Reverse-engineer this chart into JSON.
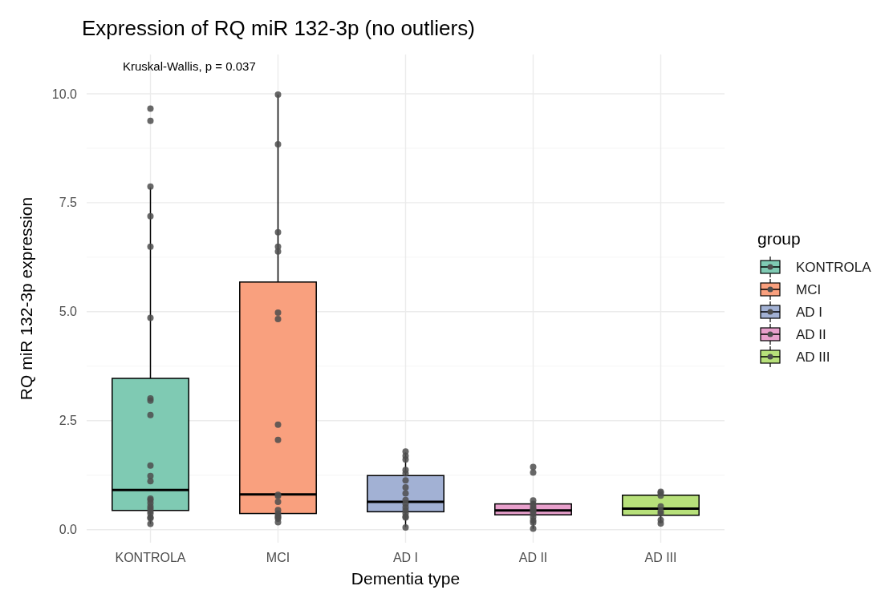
{
  "chart_data": {
    "type": "box",
    "title": "Expression of RQ miR 132-3p (no outliers)",
    "xlabel": "Dementia type",
    "ylabel": "RQ miR 132-3p expression",
    "legend_title": "group",
    "legend": "right",
    "grid": true,
    "annotations": [
      "Kruskal-Wallis, p = 0.037"
    ],
    "categories": [
      "KONTROLA",
      "MCI",
      "AD I",
      "AD II",
      "AD III"
    ],
    "ylim": [
      -0.3,
      10.9
    ],
    "yticks": [
      {
        "value": 0,
        "label": "0.0"
      },
      {
        "value": 2.5,
        "label": "2.5"
      },
      {
        "value": 5,
        "label": "5.0"
      },
      {
        "value": 7.5,
        "label": "7.5"
      },
      {
        "value": 10,
        "label": "10.0"
      }
    ],
    "series": [
      {
        "name": "KONTROLA",
        "color": "#7fcab3",
        "boxes": [
          {
            "low": 0.13,
            "q1": 0.44,
            "median": 0.91,
            "q3": 3.47,
            "high": 7.85
          },
          null,
          null,
          null,
          null
        ]
      },
      {
        "name": "MCI",
        "color": "#f9a07e",
        "boxes": [
          null,
          {
            "low": 0.18,
            "q1": 0.37,
            "median": 0.81,
            "q3": 5.68,
            "high": 9.98
          },
          null,
          null,
          null
        ]
      },
      {
        "name": "AD I",
        "color": "#a2b1d4",
        "boxes": [
          null,
          null,
          {
            "low": 0.06,
            "q1": 0.41,
            "median": 0.64,
            "q3": 1.24,
            "high": 1.77
          },
          null,
          null
        ]
      },
      {
        "name": "AD II",
        "color": "#e8a0cc",
        "boxes": [
          null,
          null,
          null,
          {
            "low": 0.02,
            "q1": 0.34,
            "median": 0.44,
            "q3": 0.59,
            "high": 0.65
          },
          null
        ]
      },
      {
        "name": "AD III",
        "color": "#b7e07a",
        "boxes": [
          null,
          null,
          null,
          null,
          {
            "low": 0.15,
            "q1": 0.33,
            "median": 0.48,
            "q3": 0.79,
            "high": 0.85
          }
        ]
      },
      {
        "type": "scatter",
        "color": "#4d4d4d",
        "marker": "circle",
        "x": [
          "KONTROLA",
          "KONTROLA",
          "KONTROLA",
          "KONTROLA",
          "KONTROLA",
          "KONTROLA",
          "KONTROLA",
          "KONTROLA",
          "KONTROLA",
          "KONTROLA",
          "KONTROLA",
          "KONTROLA",
          "KONTROLA",
          "KONTROLA",
          "KONTROLA",
          "KONTROLA",
          "KONTROLA",
          "KONTROLA",
          "KONTROLA",
          "KONTROLA",
          "KONTROLA",
          "KONTROLA",
          "MCI",
          "MCI",
          "MCI",
          "MCI",
          "MCI",
          "MCI",
          "MCI",
          "MCI",
          "MCI",
          "MCI",
          "MCI",
          "MCI",
          "MCI",
          "MCI",
          "MCI",
          "MCI",
          "MCI",
          "MCI",
          "AD I",
          "AD I",
          "AD I",
          "AD I",
          "AD I",
          "AD I",
          "AD I",
          "AD I",
          "AD I",
          "AD I",
          "AD I",
          "AD I",
          "AD I",
          "AD I",
          "AD I",
          "AD I",
          "AD II",
          "AD II",
          "AD II",
          "AD II",
          "AD II",
          "AD II",
          "AD II",
          "AD II",
          "AD II",
          "AD II",
          "AD II",
          "AD II",
          "AD II",
          "AD III",
          "AD III",
          "AD III",
          "AD III",
          "AD III",
          "AD III",
          "AD III",
          "AD III"
        ],
        "values": [
          9.66,
          9.38,
          7.87,
          7.19,
          6.49,
          4.86,
          3.01,
          2.96,
          2.63,
          1.47,
          1.23,
          1.11,
          0.71,
          0.68,
          0.61,
          0.53,
          0.48,
          0.42,
          0.37,
          0.28,
          0.26,
          0.13,
          9.98,
          8.84,
          6.82,
          6.49,
          6.38,
          4.98,
          4.83,
          2.41,
          2.06,
          0.8,
          0.77,
          0.64,
          0.45,
          0.37,
          0.31,
          0.29,
          0.25,
          0.17,
          1.79,
          1.69,
          1.61,
          1.37,
          1.29,
          1.13,
          0.97,
          0.83,
          0.68,
          0.59,
          0.51,
          0.44,
          0.37,
          0.3,
          0.28,
          0.05,
          1.44,
          1.31,
          0.67,
          0.59,
          0.53,
          0.48,
          0.45,
          0.42,
          0.36,
          0.29,
          0.21,
          0.16,
          0.02,
          0.87,
          0.84,
          0.78,
          0.53,
          0.42,
          0.37,
          0.22,
          0.14
        ]
      }
    ]
  }
}
